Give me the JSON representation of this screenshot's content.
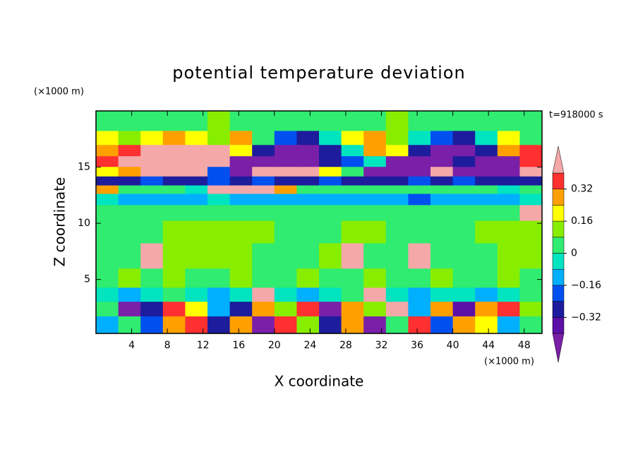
{
  "chart_data": {
    "type": "contour",
    "title": "potential temperature deviation",
    "xlabel": "X coordinate",
    "ylabel": "Z coordinate",
    "xunit": "(×1000 m)",
    "yunit": "(×1000 m)",
    "time_label": "t=918000 s",
    "xlim": [
      0,
      50
    ],
    "ylim": [
      0.2,
      20
    ],
    "xticks": [
      4,
      8,
      12,
      16,
      20,
      24,
      28,
      32,
      36,
      40,
      44,
      48
    ],
    "yticks": [
      5,
      10,
      15
    ],
    "levels": [
      -0.4,
      -0.32,
      -0.24,
      -0.16,
      -0.08,
      0,
      0.08,
      0.16,
      0.24,
      0.32,
      0.4
    ],
    "colorbar_ticks": [
      {
        "value": 0.32,
        "label": "0.32"
      },
      {
        "value": 0.16,
        "label": "0.16"
      },
      0,
      {
        "value": -0.16,
        "label": "−0.16"
      },
      {
        "value": -0.32,
        "label": "−0.32"
      }
    ],
    "colors": [
      "#7a1fa8",
      "#5c10a8",
      "#1c1c9c",
      "#0050f0",
      "#00b0ff",
      "#00e4c0",
      "#30ec70",
      "#88ee00",
      "#ffff00",
      "#ffa000",
      "#ff3030",
      "#f4a8a8"
    ],
    "x": [
      1.25,
      3.75,
      6.25,
      8.75,
      11.25,
      13.75,
      16.25,
      18.75,
      21.25,
      23.75,
      26.25,
      28.75,
      31.25,
      33.75,
      36.25,
      38.75,
      41.25,
      43.75,
      46.25,
      48.75
    ],
    "y": [
      1,
      2.5,
      3.6,
      5,
      7,
      9.5,
      11,
      12.3,
      13,
      13.8,
      14.6,
      15.5,
      16.5,
      17.5,
      19
    ],
    "z": [
      [
        -0.1,
        0.05,
        -0.2,
        0.3,
        0.35,
        -0.3,
        0.3,
        -0.45,
        0.35,
        0.1,
        -0.3,
        0.3,
        -0.45,
        0.05,
        0.35,
        -0.2,
        0.3,
        0.2,
        -0.1,
        0.05
      ],
      [
        0.05,
        -0.45,
        -0.3,
        0.35,
        0.2,
        -0.1,
        -0.3,
        0.3,
        0.1,
        0.35,
        -0.45,
        0.3,
        0.1,
        0.45,
        -0.1,
        0.3,
        -0.35,
        0.3,
        0.35,
        0.1
      ],
      [
        -0.05,
        -0.12,
        -0.05,
        0.05,
        -0.05,
        -0.12,
        -0.05,
        0.45,
        -0.05,
        -0.12,
        -0.05,
        0.02,
        0.45,
        -0.05,
        -0.12,
        -0.05,
        -0.05,
        -0.12,
        -0.05,
        0.02
      ],
      [
        0.04,
        0.12,
        0.04,
        0.12,
        0.04,
        0.04,
        0.12,
        0.04,
        0.04,
        0.12,
        0.04,
        0.04,
        0.12,
        0.04,
        0.04,
        0.12,
        0.04,
        0.04,
        0.12,
        0.04
      ],
      [
        0.04,
        0.04,
        0.45,
        0.12,
        0.12,
        0.12,
        0.12,
        0.04,
        0.04,
        0.04,
        0.12,
        0.45,
        0.04,
        0.04,
        0.45,
        0.04,
        0.04,
        0.04,
        0.12,
        0.12
      ],
      [
        0.04,
        0.04,
        0.04,
        0.12,
        0.12,
        0.12,
        0.12,
        0.12,
        0.04,
        0.04,
        0.04,
        0.12,
        0.12,
        0.04,
        0.04,
        0.04,
        0.04,
        0.12,
        0.12,
        0.12
      ],
      [
        0.04,
        0.04,
        0.04,
        0.04,
        0.04,
        0.04,
        0.04,
        0.04,
        0.04,
        0.04,
        0.04,
        0.04,
        0.04,
        0.04,
        0.04,
        0.04,
        0.04,
        0.04,
        0.04,
        0.45
      ],
      [
        -0.05,
        -0.12,
        -0.12,
        -0.12,
        -0.12,
        -0.05,
        -0.12,
        -0.12,
        -0.12,
        -0.12,
        -0.12,
        -0.12,
        -0.12,
        -0.12,
        -0.2,
        -0.12,
        -0.12,
        -0.12,
        -0.12,
        -0.05
      ],
      [
        0.3,
        0.04,
        0.04,
        0.04,
        -0.05,
        0.45,
        0.45,
        0.45,
        0.3,
        0.04,
        0.04,
        0.04,
        0.04,
        0.04,
        0.04,
        0.04,
        0.04,
        0.04,
        -0.05,
        0.04
      ],
      [
        -0.28,
        -0.28,
        -0.2,
        -0.28,
        -0.28,
        -0.2,
        -0.28,
        -0.2,
        -0.28,
        -0.28,
        -0.2,
        -0.28,
        -0.28,
        -0.28,
        -0.2,
        -0.28,
        -0.2,
        -0.28,
        -0.28,
        -0.28
      ],
      [
        0.2,
        0.3,
        0.45,
        0.45,
        0.45,
        -0.2,
        -0.45,
        0.45,
        0.45,
        0.45,
        0.2,
        0.04,
        -0.45,
        -0.45,
        -0.45,
        0.45,
        -0.45,
        -0.45,
        -0.45,
        0.45
      ],
      [
        0.35,
        0.45,
        0.45,
        0.45,
        0.45,
        0.45,
        -0.45,
        -0.45,
        -0.45,
        -0.45,
        -0.3,
        -0.2,
        -0.05,
        -0.45,
        -0.45,
        -0.45,
        -0.3,
        -0.45,
        -0.45,
        0.35
      ],
      [
        0.3,
        0.35,
        0.45,
        0.45,
        0.45,
        0.45,
        0.2,
        -0.3,
        -0.45,
        -0.45,
        -0.3,
        -0.05,
        0.3,
        0.2,
        -0.3,
        -0.45,
        -0.45,
        -0.3,
        0.3,
        0.35
      ],
      [
        0.2,
        0.12,
        0.2,
        0.3,
        0.2,
        0.12,
        0.3,
        0.04,
        -0.2,
        -0.3,
        -0.05,
        0.2,
        0.3,
        0.12,
        -0.05,
        -0.2,
        -0.3,
        -0.05,
        0.2,
        0.04
      ],
      [
        0.04,
        0.04,
        0.04,
        0.04,
        0.04,
        0.12,
        0.04,
        0.04,
        0.04,
        0.04,
        0.04,
        0.04,
        0.04,
        0.12,
        0.04,
        0.04,
        0.04,
        0.04,
        0.04,
        0.04
      ]
    ]
  }
}
